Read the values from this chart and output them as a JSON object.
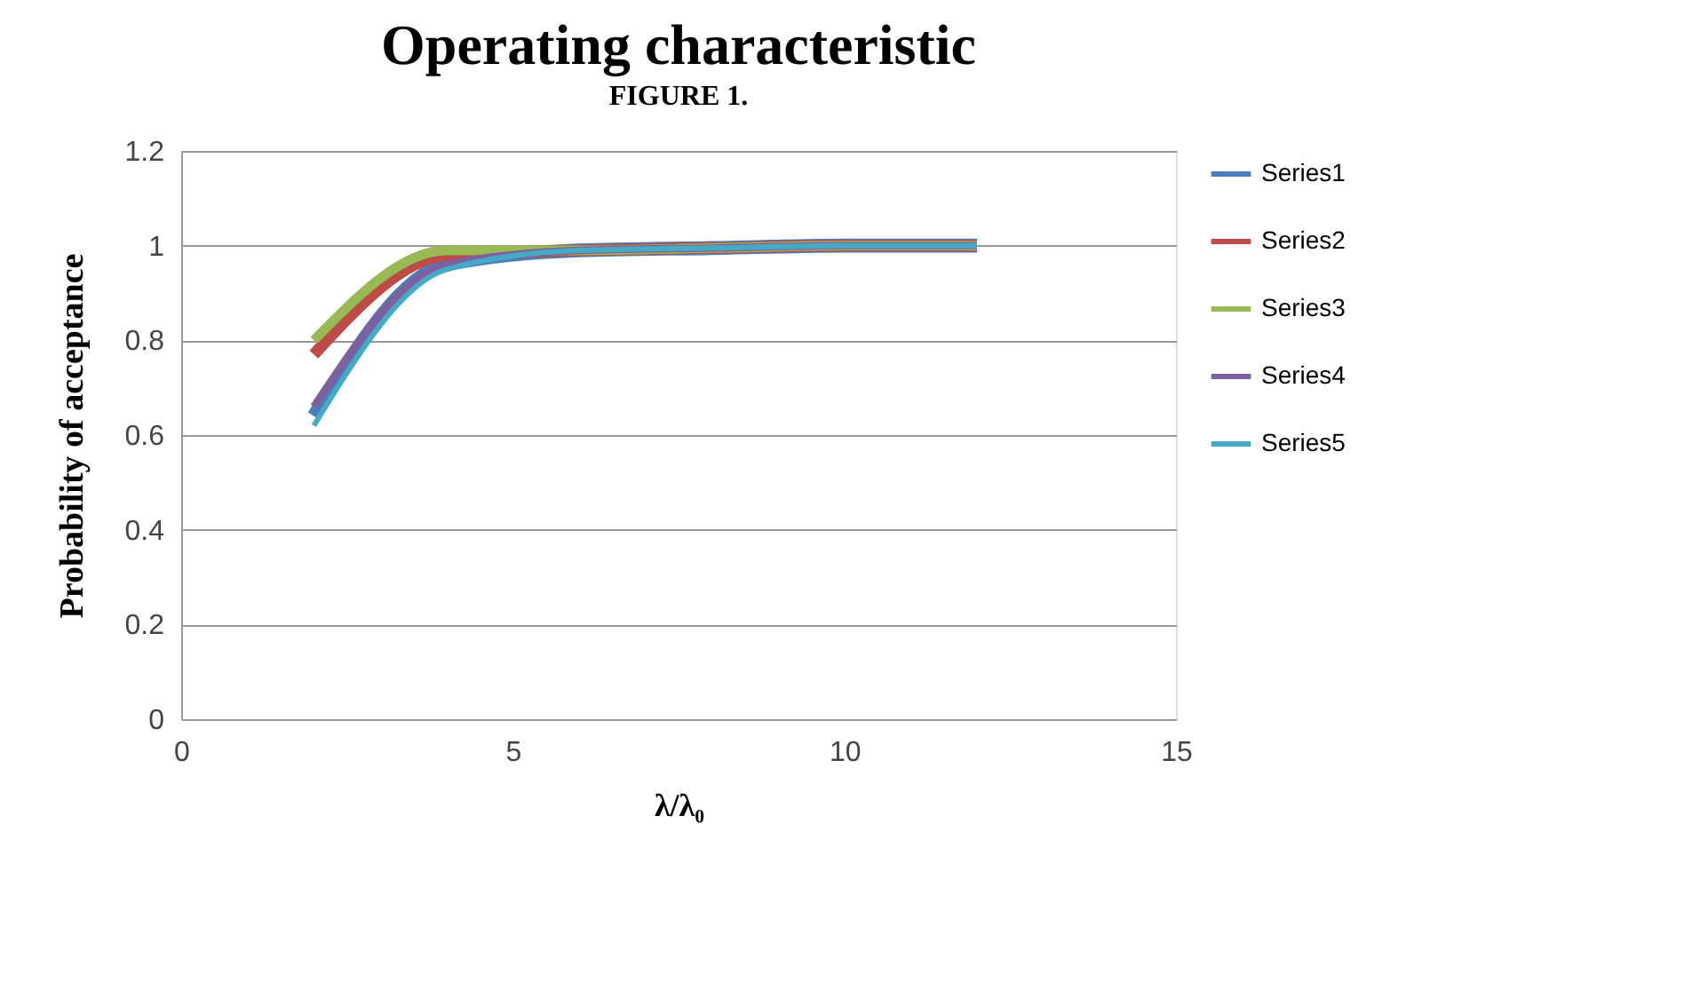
{
  "chart_data": {
    "type": "line",
    "title": "Operating characteristic",
    "xlabel": "λ/λ₀",
    "ylabel": "Probability of acceptance",
    "annotations": [
      "FIGURE 1."
    ],
    "x": [
      2,
      4,
      6,
      8,
      10,
      12
    ],
    "series": [
      {
        "name": "Series1",
        "color": "#4a7ebb",
        "values": [
          0.64,
          0.96,
          0.99,
          0.995,
          1,
          1
        ]
      },
      {
        "name": "Series2",
        "color": "#be4b48",
        "values": [
          0.77,
          0.98,
          0.99,
          0.995,
          1,
          1
        ]
      },
      {
        "name": "Series3",
        "color": "#98b954",
        "values": [
          0.8,
          0.99,
          0.99,
          0.995,
          1,
          1
        ]
      },
      {
        "name": "Series4",
        "color": "#7d60a0",
        "values": [
          0.66,
          0.96,
          0.99,
          0.995,
          1,
          1
        ]
      },
      {
        "name": "Series5",
        "color": "#46aac5",
        "values": [
          0.62,
          0.95,
          0.99,
          0.995,
          1,
          1
        ]
      }
    ],
    "xlim": [
      0,
      15
    ],
    "xticks": [
      0,
      5,
      10,
      15
    ],
    "ylim": [
      0,
      1.2
    ],
    "yticks": [
      0,
      0.2,
      0.4,
      0.6,
      0.8,
      1,
      1.2
    ],
    "grid": "y",
    "legend": "right",
    "marker": "none",
    "line_style": "solid"
  }
}
